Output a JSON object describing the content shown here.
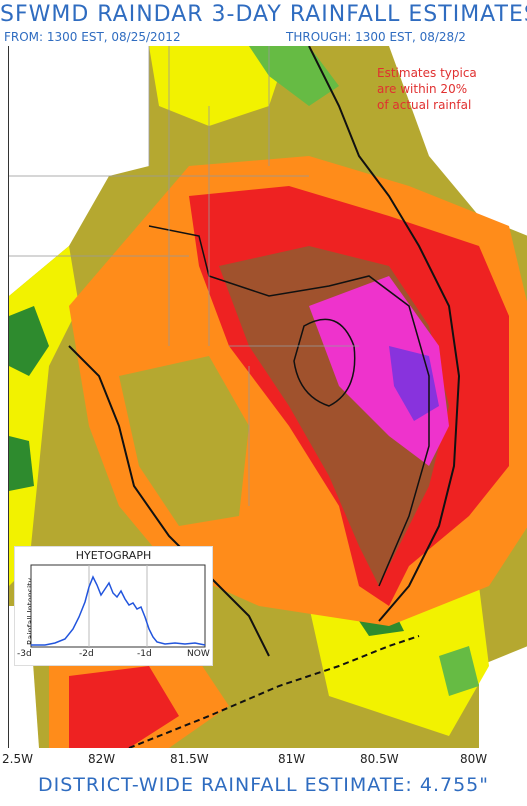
{
  "header": {
    "title": "SFWMD RAINDAR 3-DAY RAINFALL ESTIMATES",
    "from": "FROM: 1300 EST, 08/25/2012",
    "through": "THROUGH: 1300 EST, 08/28/2"
  },
  "note": {
    "line1": "Estimates typica",
    "line2": "are within 20%",
    "line3": "of actual rainfal"
  },
  "hyetograph": {
    "title": "HYETOGRAPH",
    "ylabel": "Rainfall Intensity",
    "ticks": [
      "-3d",
      "-2d",
      "-1d",
      "NOW"
    ],
    "line_color": "#2255dd"
  },
  "longitude_axis": [
    "2.5W",
    "82W",
    "81.5W",
    "81W",
    "80.5W",
    "80W"
  ],
  "footer": {
    "estimate": "DISTRICT-WIDE RAINFALL ESTIMATE: 4.755\""
  },
  "colors": {
    "green": "#2e8b2e",
    "light_green": "#66bb44",
    "yellow": "#f2f200",
    "olive": "#b5a830",
    "orange": "#ff8c1a",
    "red": "#ee2222",
    "brown": "#a0522d",
    "magenta": "#ee33cc",
    "purple": "#8833dd",
    "text_blue": "#2f6cc0",
    "note_red": "#e03030"
  }
}
